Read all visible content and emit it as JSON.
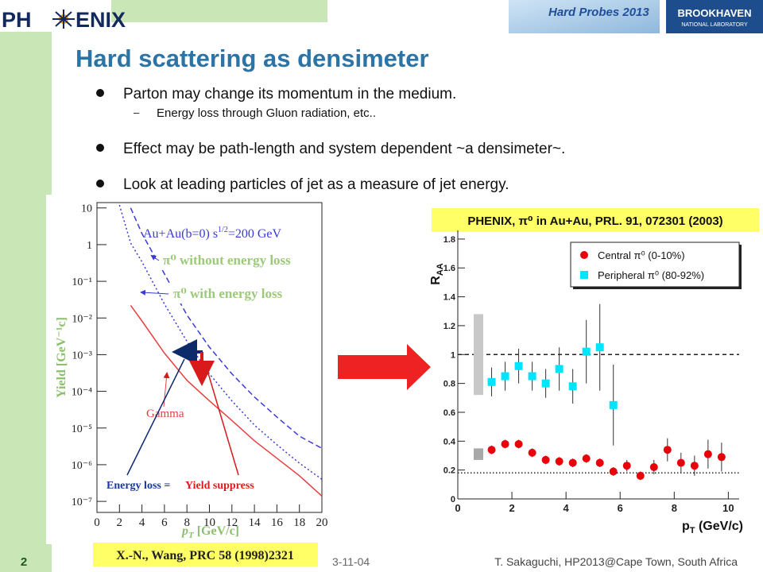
{
  "header": {
    "logo_left": [
      "PH",
      "ENIX"
    ],
    "banner_title": "Hard Probes 2013",
    "logo_right": [
      "BROOKHAVEN",
      "NATIONAL LABORATORY"
    ]
  },
  "title": "Hard scattering as densimeter",
  "bullets": [
    {
      "text": "Parton may change its momentum in the medium.",
      "sub": [
        "Energy loss through Gluon radiation, etc.."
      ]
    },
    {
      "text": "Effect may be path-length and system dependent ~a densimeter~."
    },
    {
      "text": "Look at leading particles of jet as a measure of jet energy."
    }
  ],
  "chart_data": [
    {
      "type": "line",
      "ylog": true,
      "xlim": [
        0,
        20
      ],
      "ylim": [
        5e-08,
        14
      ],
      "xticks": [
        0,
        2,
        4,
        6,
        8,
        10,
        12,
        14,
        16,
        18,
        20
      ],
      "yticks": [
        10,
        1,
        {
          "value": 0.1,
          "label": "10⁻¹"
        },
        {
          "value": 0.01,
          "label": "10⁻²"
        },
        {
          "value": 0.001,
          "label": "10⁻³"
        },
        {
          "value": 0.0001,
          "label": "10⁻⁴"
        },
        {
          "value": 1e-05,
          "label": "10⁻⁵"
        },
        {
          "value": 1e-06,
          "label": "10⁻⁶"
        },
        {
          "value": 1e-07,
          "label": "10⁻⁷"
        }
      ],
      "xlabel": [
        "p",
        "T",
        " [GeV/c]"
      ],
      "ylabel": "Yield [GeV⁻¹c]",
      "annotation": [
        "Au+Au(b=0)  s",
        "1/2",
        "=200 GeV"
      ],
      "note": [
        "Energy loss =",
        "Yield suppress"
      ],
      "caption": "X.-N., Wang, PRC 58 (1998)2321",
      "x": [
        2,
        3,
        4,
        6,
        8,
        10,
        12,
        14,
        16,
        18,
        20
      ],
      "series": [
        {
          "name": "π⁰ without energy loss",
          "color": "#3a3ad6",
          "style": "dashed",
          "values": [
            null,
            10,
            2,
            0.16,
            0.012,
            0.0016,
            0.0003,
            7e-05,
            2e-05,
            6e-06,
            2.8e-06
          ]
        },
        {
          "name": "π⁰ with energy loss",
          "color": "#3a3ad6",
          "style": "dotted",
          "values": [
            12,
            1.1,
            0.34,
            0.024,
            0.0023,
            0.0003,
            5.5e-05,
            1.2e-05,
            3.5e-06,
            1.1e-06,
            4e-07
          ]
        },
        {
          "name": "Gamma",
          "color": "#e84040",
          "style": "solid",
          "values": [
            null,
            0.022,
            0.0083,
            0.0011,
            0.0002,
            5.5e-05,
            1.6e-05,
            4.5e-06,
            1.5e-06,
            5e-07,
            1.4e-07
          ]
        }
      ]
    },
    {
      "type": "scatter",
      "title": "PHENIX, π⁰ in Au+Au, PRL. 91, 072301 (2003)",
      "xlabel": [
        "p",
        "T",
        " (GeV/c)"
      ],
      "ylabel": [
        "R",
        "AA"
      ],
      "xlim": [
        0,
        10.4
      ],
      "ylim": [
        0,
        1.86
      ],
      "xticks": [
        0,
        2,
        4,
        6,
        8,
        10
      ],
      "yticks": [
        0,
        0.2,
        0.4,
        0.6,
        0.8,
        1,
        1.2,
        1.4,
        1.6,
        1.8
      ],
      "reference_lines": [
        1,
        0.18
      ],
      "boxes": [
        [
          0.72,
          1.28
        ],
        [
          0.27,
          0.35
        ]
      ],
      "legend": "top-right",
      "series": [
        {
          "name": "Central π⁰ (0-10%)",
          "color": "#e8000b",
          "marker": "circle",
          "x": [
            1.25,
            1.75,
            2.25,
            2.75,
            3.25,
            3.75,
            4.25,
            4.75,
            5.25,
            5.75,
            6.25,
            6.75,
            7.25,
            7.75,
            8.25,
            8.75,
            9.25,
            9.75
          ],
          "values": [
            0.34,
            0.38,
            0.38,
            0.32,
            0.27,
            0.26,
            0.25,
            0.28,
            0.25,
            0.19,
            0.23,
            0.16,
            0.22,
            0.34,
            0.25,
            0.23,
            0.31,
            0.29
          ],
          "errors": [
            0.03,
            0.03,
            0.03,
            0.03,
            0.03,
            0.03,
            0.03,
            0.03,
            0.03,
            0.03,
            0.04,
            0.03,
            0.05,
            0.08,
            0.07,
            0.07,
            0.1,
            0.1
          ]
        },
        {
          "name": "Peripheral π⁰ (80-92%)",
          "color": "#00e5ff",
          "marker": "square",
          "x": [
            1.25,
            1.75,
            2.25,
            2.75,
            3.25,
            3.75,
            4.25,
            4.75,
            5.25,
            5.75
          ],
          "values": [
            0.81,
            0.85,
            0.92,
            0.85,
            0.8,
            0.9,
            0.78,
            1.02,
            1.05,
            0.65
          ],
          "errors": [
            0.1,
            0.1,
            0.12,
            0.1,
            0.1,
            0.15,
            0.12,
            0.22,
            0.3,
            0.28
          ]
        }
      ]
    }
  ],
  "footer": {
    "page": "2",
    "date": "3-11-04",
    "author": "T. Sakaguchi, HP2013@Cape Town, South Africa"
  }
}
